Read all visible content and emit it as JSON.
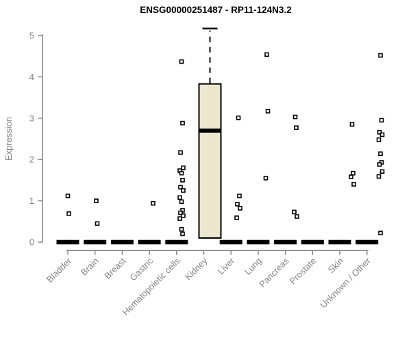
{
  "title": "ENSG00000251487 - RP11-124N3.2",
  "colors": {
    "axis": "#848484",
    "label": "#848484",
    "data_ink": "#000000",
    "box_fill": "#EDE7CF",
    "background": "#ffffff"
  },
  "chart_data": {
    "type": "boxplot",
    "title": "ENSG00000251487 - RP11-124N3.2",
    "xlabel": "",
    "ylabel": "Expression",
    "ylim": [
      0,
      5
    ],
    "yticks": [
      0,
      1,
      2,
      3,
      4,
      5
    ],
    "grid": false,
    "legend": "none",
    "categories": [
      "Bladder",
      "Brain",
      "Breast",
      "Gastric",
      "Hematopoietic cells",
      "Kidney",
      "Liver",
      "Lung",
      "Pancreas",
      "Prostate",
      "Skin",
      "Unknown / Other"
    ],
    "series": [
      {
        "category": "Bladder",
        "median": 0,
        "points": [
          1.12,
          0.69
        ]
      },
      {
        "category": "Brain",
        "median": 0,
        "points": [
          1.0,
          0.45
        ]
      },
      {
        "category": "Breast",
        "median": 0,
        "points": []
      },
      {
        "category": "Gastric",
        "median": 0,
        "points": [
          0.94
        ]
      },
      {
        "category": "Hematopoietic cells",
        "median": 0,
        "points": [
          4.37,
          2.88,
          2.17,
          1.8,
          1.73,
          1.67,
          1.5,
          1.33,
          1.25,
          1.08,
          0.98,
          0.77,
          0.71,
          0.64,
          0.57,
          0.31,
          0.2
        ]
      },
      {
        "category": "Kidney",
        "box": {
          "q1": 0.1,
          "median": 2.7,
          "q3": 3.83,
          "whisker_max": 5.17
        },
        "points": []
      },
      {
        "category": "Liver",
        "median": 0,
        "points": [
          3.01,
          1.12,
          0.92,
          0.82,
          0.59
        ]
      },
      {
        "category": "Lung",
        "median": 0,
        "points": [
          4.54,
          3.17,
          1.55
        ]
      },
      {
        "category": "Pancreas",
        "median": 0,
        "points": [
          3.03,
          2.77,
          0.73,
          0.62
        ]
      },
      {
        "category": "Prostate",
        "median": 0,
        "points": []
      },
      {
        "category": "Skin",
        "median": 0,
        "points": [
          2.85,
          1.67,
          1.58,
          1.4
        ]
      },
      {
        "category": "Unknown / Other",
        "median": 0,
        "points": [
          4.52,
          2.95,
          2.66,
          2.6,
          2.48,
          2.14,
          1.93,
          1.88,
          1.71,
          1.59,
          0.22
        ]
      }
    ]
  }
}
